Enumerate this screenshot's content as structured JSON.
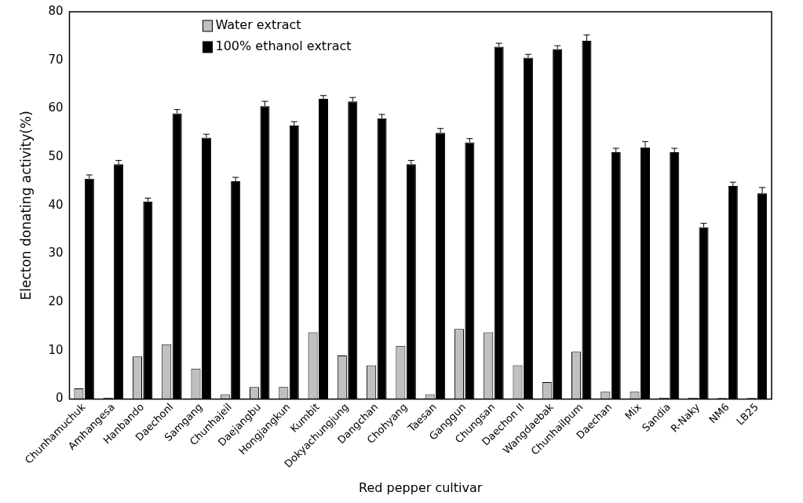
{
  "chart_data": {
    "type": "bar",
    "x_label": "Red pepper cultivar",
    "y_label": "Electon donating activity(%)",
    "categories": [
      "Chunhamuchuk",
      "Amhangesa",
      "Hanbando",
      "Daechonl",
      "Samgang",
      "Chunhajeil",
      "Daejangbu",
      "Hongjangkun",
      "Kumbit",
      "Dokyachungjung",
      "Dangchan",
      "Chohyang",
      "Taesan",
      "Ganggun",
      "Chungsan",
      "Daechon II",
      "Wangdaebak",
      "Chunhailpum",
      "Daechan",
      "Mix",
      "Sandia",
      "R-Naky",
      "NM6",
      "LB25"
    ],
    "series": [
      {
        "name": "Water extract",
        "color": "#c0c0c0",
        "values": [
          2.2,
          0.3,
          8.8,
          11.3,
          6.3,
          1.0,
          2.5,
          2.5,
          13.8,
          9.0,
          7.0,
          11.0,
          1.0,
          14.5,
          13.8,
          7.0,
          3.5,
          9.8,
          1.5,
          1.5,
          0.3,
          0.3,
          0.2,
          0.2
        ]
      },
      {
        "name": "100% ethanol extract",
        "color": "#000000",
        "values": [
          45.5,
          48.5,
          40.8,
          59.0,
          54.0,
          45.0,
          60.5,
          56.5,
          62.0,
          61.5,
          58.0,
          48.5,
          55.0,
          53.0,
          72.8,
          70.5,
          72.3,
          74.0,
          51.0,
          52.0,
          51.0,
          35.5,
          44.0,
          42.5
        ],
        "errors": [
          0.8,
          0.8,
          0.7,
          0.8,
          0.7,
          0.8,
          1.0,
          0.8,
          0.7,
          0.8,
          0.8,
          0.8,
          0.9,
          0.8,
          0.7,
          0.7,
          0.7,
          1.2,
          0.8,
          1.2,
          0.8,
          0.8,
          0.8,
          1.2
        ]
      }
    ],
    "ylim": [
      0,
      80
    ],
    "yticks": [
      0,
      10,
      20,
      30,
      40,
      50,
      60,
      70,
      80
    ],
    "grid": false,
    "legend": "upper left"
  }
}
